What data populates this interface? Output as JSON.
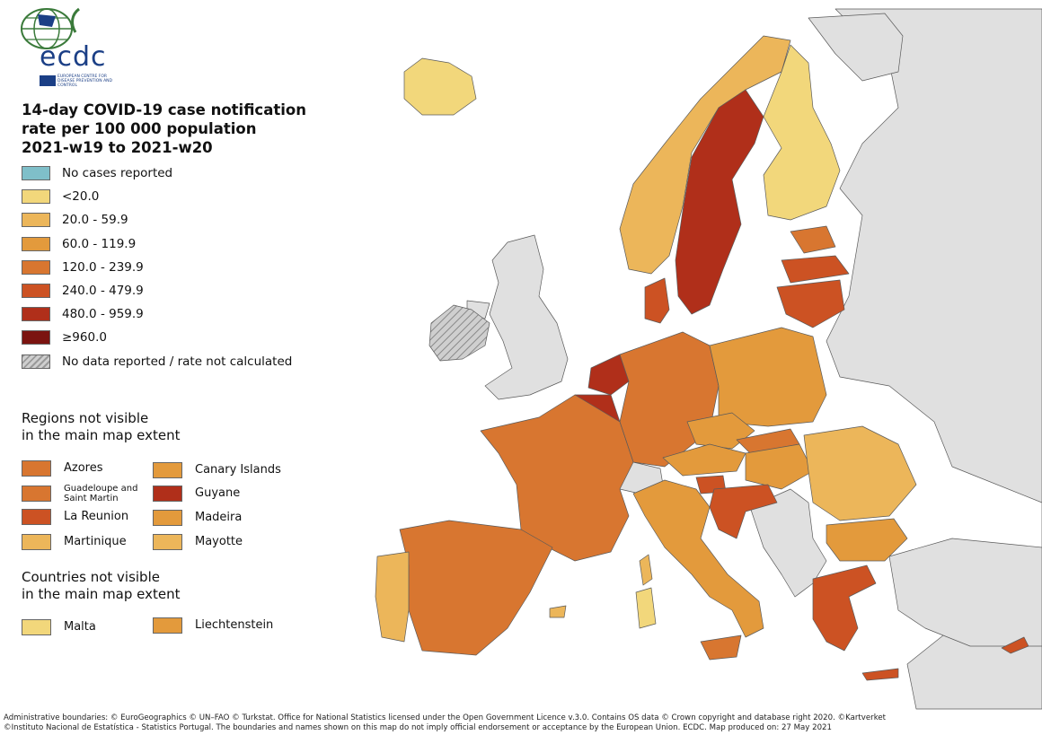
{
  "logo": {
    "wordmark": "ecdc",
    "subtitle": "EUROPEAN CENTRE FOR DISEASE PREVENTION AND CONTROL"
  },
  "title": {
    "line1": "14-day COVID-19 case notification",
    "line2": "rate per 100 000 population",
    "line3": "2021-w19 to 2021-w20"
  },
  "legend": [
    {
      "label": "No cases reported",
      "color": "#7fbfc9"
    },
    {
      "label": "<20.0",
      "color": "#f2d77b"
    },
    {
      "label": "20.0 - 59.9",
      "color": "#ecb65a"
    },
    {
      "label": "60.0 - 119.9",
      "color": "#e39a3c"
    },
    {
      "label": "120.0 - 239.9",
      "color": "#d87630"
    },
    {
      "label": "240.0 - 479.9",
      "color": "#cc5223"
    },
    {
      "label": "480.0 - 959.9",
      "color": "#b02f1a"
    },
    {
      "label": "≥960.0",
      "color": "#7b1410"
    },
    {
      "label": "No data reported / rate not calculated",
      "color": "hatch"
    }
  ],
  "regions_header": {
    "line1": "Regions not visible",
    "line2": "in the main map extent"
  },
  "regions": [
    {
      "label": "Azores",
      "color": "#d87630"
    },
    {
      "label": "Canary Islands",
      "color": "#e39a3c"
    },
    {
      "label": "Guadeloupe and Saint Martin",
      "color": "#d87630"
    },
    {
      "label": "Guyane",
      "color": "#b02f1a"
    },
    {
      "label": "La Reunion",
      "color": "#cc5223"
    },
    {
      "label": "Madeira",
      "color": "#e39a3c"
    },
    {
      "label": "Martinique",
      "color": "#ecb65a"
    },
    {
      "label": "Mayotte",
      "color": "#ecb65a"
    }
  ],
  "countries_header": {
    "line1": "Countries not visible",
    "line2": "in the main map extent"
  },
  "countries": [
    {
      "label": "Malta",
      "color": "#f2d77b"
    },
    {
      "label": "Liechtenstein",
      "color": "#e39a3c"
    }
  ],
  "map_colors": {
    "sea": "#ffffff",
    "non_eu": "#e0e0e0",
    "border": "#5a5a5a"
  },
  "footer": {
    "line1": "Administrative boundaries: © EuroGeographics © UN–FAO © Turkstat. Office for National Statistics licensed under the Open Government Licence v.3.0. Contains OS data © Crown copyright and database right 2020. ©Kartverket",
    "line2": "©Instituto Nacional de Estatística - Statistics Portugal. The boundaries and names shown on this map do not imply official endorsement or acceptance by the European Union. ECDC. Map produced on: 27 May 2021"
  }
}
